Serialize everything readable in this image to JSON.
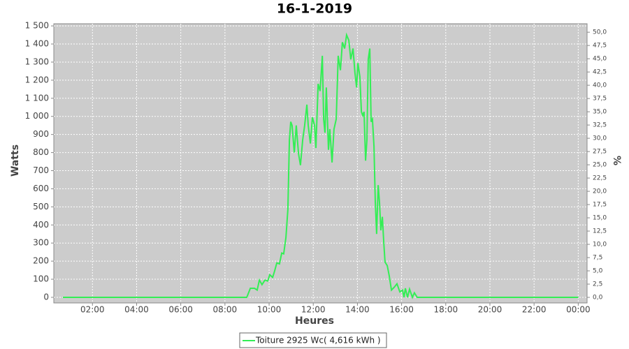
{
  "chart_data": {
    "type": "line",
    "title": "16-1-2019",
    "xlabel": "Heures",
    "ylabel": "Watts",
    "y2label": "%",
    "x": [
      0.66,
      8.99,
      9.15,
      9.34,
      9.46,
      9.56,
      9.68,
      9.81,
      9.94,
      10.03,
      10.16,
      10.25,
      10.35,
      10.47,
      10.57,
      10.66,
      10.76,
      10.85,
      10.92,
      10.98,
      11.04,
      11.14,
      11.23,
      11.33,
      11.42,
      11.52,
      11.61,
      11.71,
      11.77,
      11.87,
      11.96,
      12.06,
      12.12,
      12.22,
      12.31,
      12.41,
      12.47,
      12.53,
      12.59,
      12.69,
      12.75,
      12.85,
      12.94,
      13.04,
      13.13,
      13.23,
      13.32,
      13.42,
      13.51,
      13.61,
      13.7,
      13.8,
      13.89,
      13.96,
      14.02,
      14.11,
      14.18,
      14.24,
      14.3,
      14.37,
      14.43,
      14.49,
      14.56,
      14.62,
      14.68,
      14.75,
      14.81,
      14.87,
      14.94,
      15.0,
      15.06,
      15.13,
      15.19,
      15.25,
      15.35,
      15.44,
      15.54,
      15.66,
      15.79,
      15.92,
      16.04,
      16.11,
      16.17,
      16.27,
      16.36,
      16.49,
      16.58,
      16.71,
      24.0
    ],
    "series": [
      {
        "name": "Toiture 2925 Wc( 4,616 kWh )",
        "color": "#33ee55",
        "values": [
          0,
          0,
          50,
          50,
          40,
          95,
          70,
          95,
          90,
          125,
          110,
          145,
          190,
          185,
          245,
          240,
          330,
          485,
          870,
          970,
          950,
          800,
          950,
          795,
          730,
          870,
          950,
          1065,
          950,
          850,
          995,
          950,
          825,
          1180,
          1140,
          1335,
          985,
          910,
          1160,
          815,
          930,
          745,
          930,
          985,
          1335,
          1255,
          1410,
          1375,
          1450,
          1420,
          1315,
          1375,
          1240,
          1160,
          1295,
          1220,
          1025,
          1005,
          1025,
          755,
          870,
          1315,
          1375,
          970,
          985,
          835,
          525,
          350,
          620,
          525,
          370,
          445,
          310,
          195,
          175,
          120,
          40,
          55,
          75,
          30,
          40,
          0,
          50,
          0,
          45,
          0,
          25,
          0,
          0
        ]
      }
    ],
    "xlim": [
      0.25,
      24.4
    ],
    "xticks": [
      {
        "value": 2,
        "label": "02:00"
      },
      {
        "value": 4,
        "label": "04:00"
      },
      {
        "value": 6,
        "label": "06:00"
      },
      {
        "value": 8,
        "label": "08:00"
      },
      {
        "value": 10,
        "label": "10:00"
      },
      {
        "value": 12,
        "label": "12:00"
      },
      {
        "value": 14,
        "label": "14:00"
      },
      {
        "value": 16,
        "label": "16:00"
      },
      {
        "value": 18,
        "label": "18:00"
      },
      {
        "value": 20,
        "label": "20:00"
      },
      {
        "value": 22,
        "label": "22:00"
      },
      {
        "value": 24,
        "label": "00:00"
      }
    ],
    "ylim": [
      -31,
      1512
    ],
    "yticks": [
      0,
      100,
      200,
      300,
      400,
      500,
      600,
      700,
      800,
      900,
      {
        "value": 1000,
        "label": "1 000"
      },
      {
        "value": 1100,
        "label": "1 100"
      },
      {
        "value": 1200,
        "label": "1 200"
      },
      {
        "value": 1300,
        "label": "1 300"
      },
      {
        "value": 1400,
        "label": "1 400"
      },
      {
        "value": 1500,
        "label": "1 500"
      }
    ],
    "y2lim": [
      -1.05,
      51.6
    ],
    "y2ticks": [
      {
        "value": 0,
        "label": "0,0"
      },
      {
        "value": 2.5,
        "label": "2,5"
      },
      {
        "value": 5,
        "label": "5,0"
      },
      {
        "value": 7.5,
        "label": "7,5"
      },
      {
        "value": 10,
        "label": "10,0"
      },
      {
        "value": 12.5,
        "label": "12,5"
      },
      {
        "value": 15,
        "label": "15,0"
      },
      {
        "value": 17.5,
        "label": "17,5"
      },
      {
        "value": 20,
        "label": "20,0"
      },
      {
        "value": 22.5,
        "label": "22,5"
      },
      {
        "value": 25,
        "label": "25,0"
      },
      {
        "value": 27.5,
        "label": "27,5"
      },
      {
        "value": 30,
        "label": "30,0"
      },
      {
        "value": 32.5,
        "label": "32,5"
      },
      {
        "value": 35,
        "label": "35,0"
      },
      {
        "value": 37.5,
        "label": "37,5"
      },
      {
        "value": 40,
        "label": "40,0"
      },
      {
        "value": 42.5,
        "label": "42,5"
      },
      {
        "value": 45,
        "label": "45,0"
      },
      {
        "value": 47.5,
        "label": "47,5"
      },
      {
        "value": 50,
        "label": "50,0"
      }
    ],
    "grid": true,
    "legend": "bottom"
  }
}
